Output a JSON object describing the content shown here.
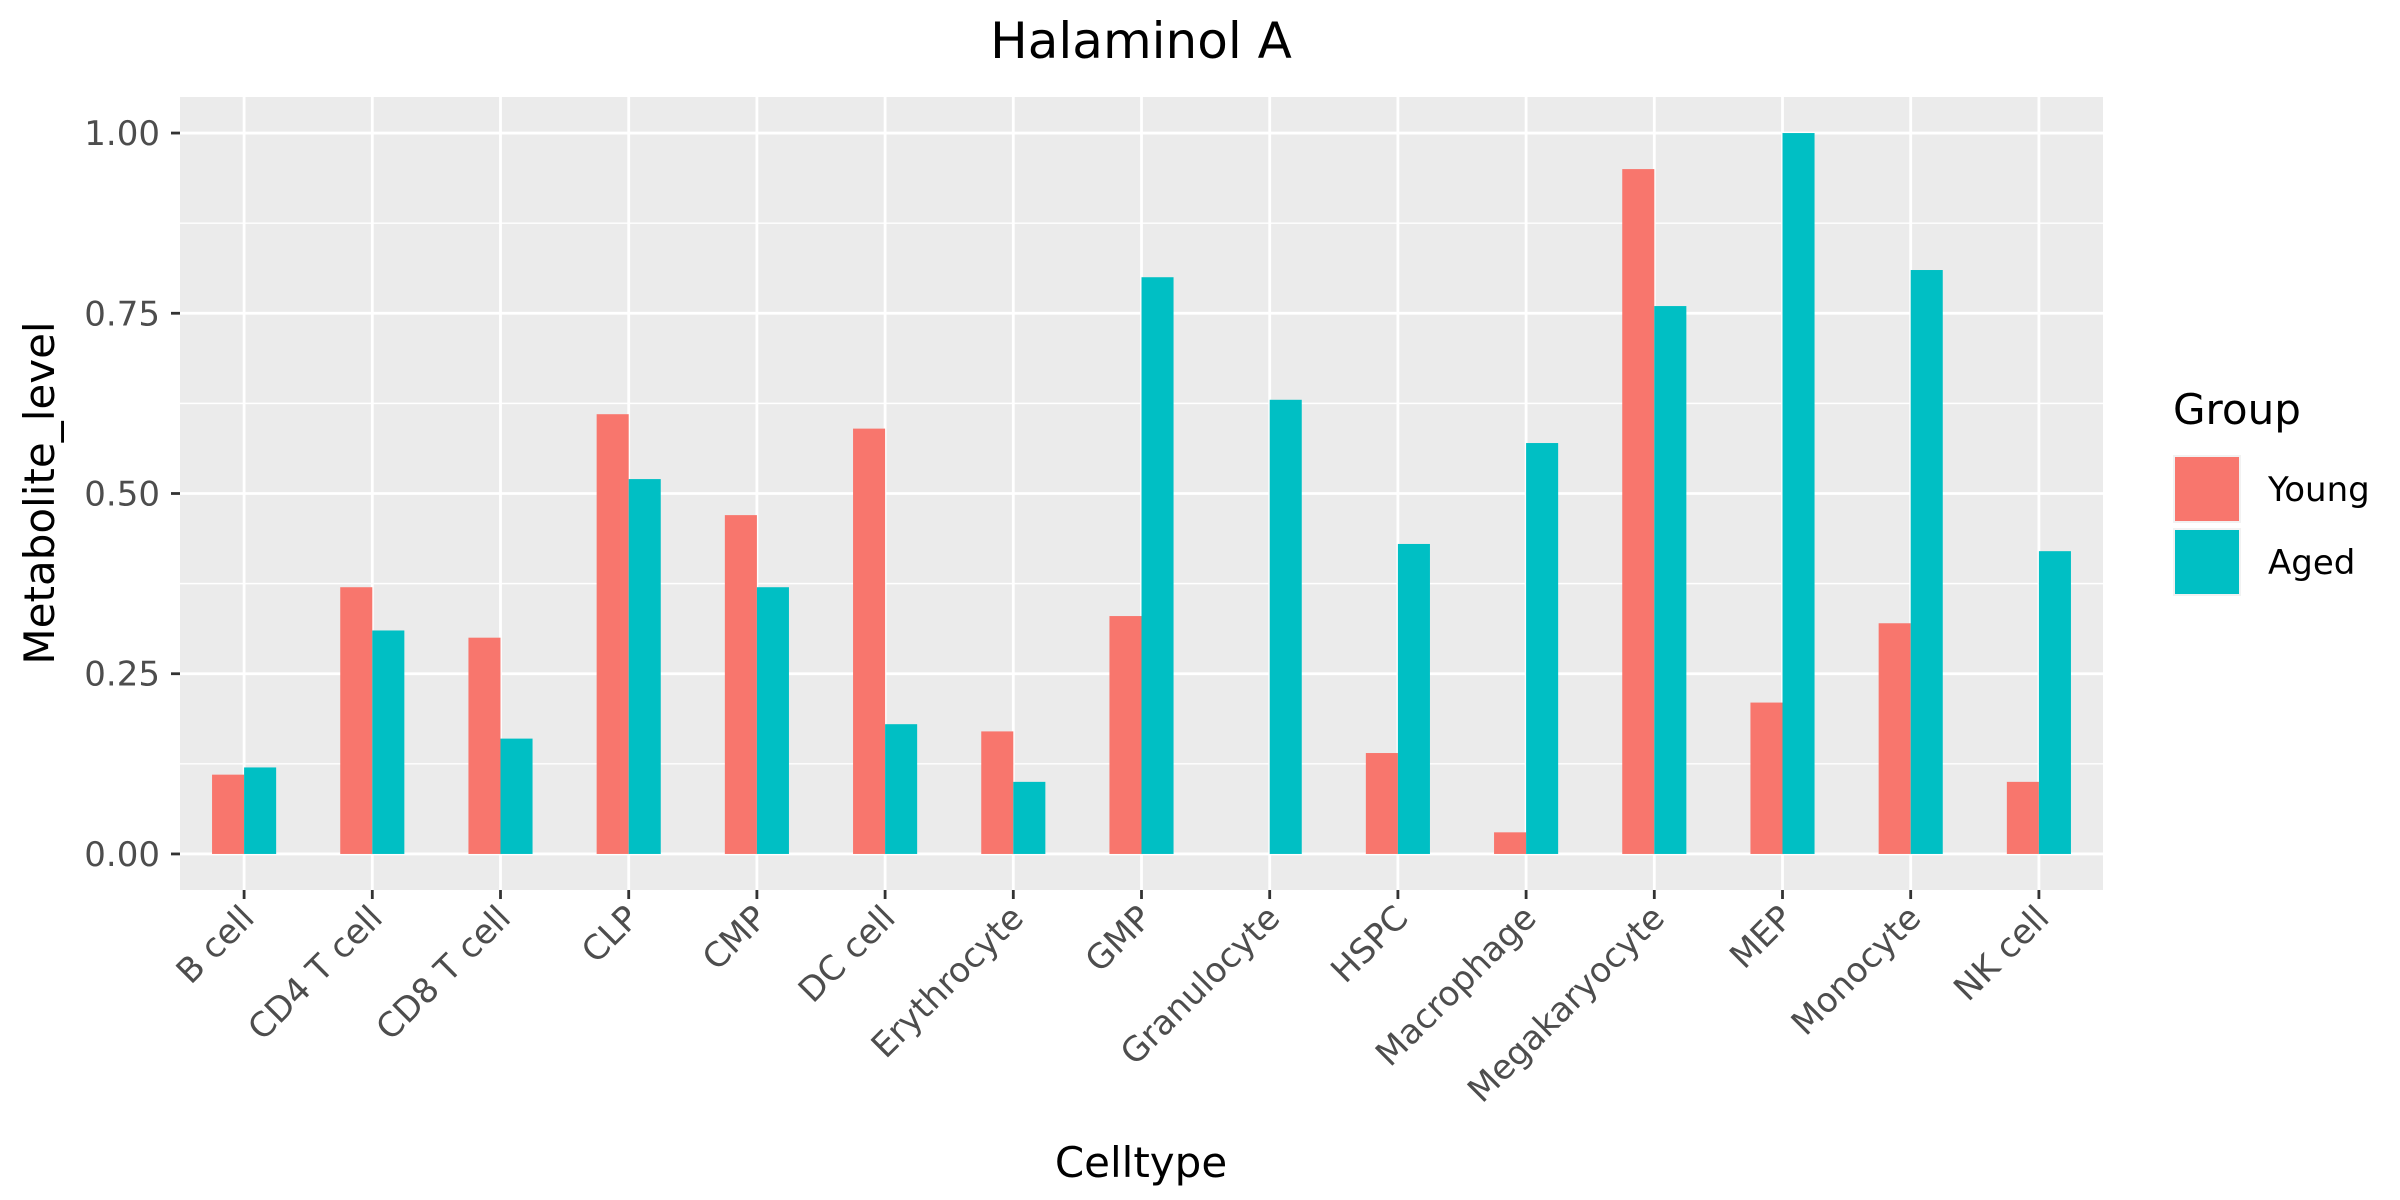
{
  "chart_data": {
    "type": "bar",
    "title": "Halaminol A",
    "xlabel": "Celltype",
    "ylabel": "Metabolite_level",
    "ylim": [
      -0.05,
      1.05
    ],
    "yticks": [
      0.0,
      0.25,
      0.5,
      0.75,
      1.0
    ],
    "ytick_labels": [
      "0.00",
      "0.25",
      "0.50",
      "0.75",
      "1.00"
    ],
    "grid": true,
    "legend": {
      "title": "Group",
      "position": "right"
    },
    "categories": [
      "B cell",
      "CD4 T cell",
      "CD8 T cell",
      "CLP",
      "CMP",
      "DC cell",
      "Erythrocyte",
      "GMP",
      "Granulocyte",
      "HSPC",
      "Macrophage",
      "Megakaryocyte",
      "MEP",
      "Monocyte",
      "NK cell"
    ],
    "series": [
      {
        "name": "Young",
        "color": "#F8766D",
        "values": [
          0.11,
          0.37,
          0.3,
          0.61,
          0.47,
          0.59,
          0.17,
          0.33,
          0.0,
          0.14,
          0.03,
          0.95,
          0.21,
          0.32,
          0.1
        ]
      },
      {
        "name": "Aged",
        "color": "#00BFC4",
        "values": [
          0.12,
          0.31,
          0.16,
          0.52,
          0.37,
          0.18,
          0.1,
          0.8,
          0.63,
          0.43,
          0.57,
          0.76,
          1.0,
          0.81,
          0.42
        ]
      }
    ]
  }
}
